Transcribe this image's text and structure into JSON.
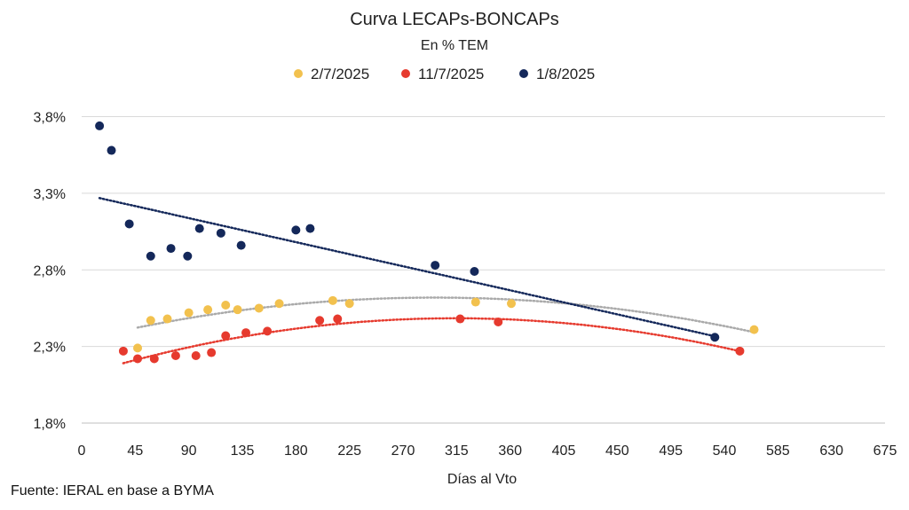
{
  "chart_data": {
    "type": "scatter",
    "title": "Curva LECAPs-BONCAPs",
    "subtitle": "En % TEM",
    "xlabel": "Días al Vto",
    "ylabel": "",
    "xlim": [
      0,
      675
    ],
    "ylim": [
      1.8,
      4.0
    ],
    "x_ticks": [
      0,
      45,
      90,
      135,
      180,
      225,
      270,
      315,
      360,
      405,
      450,
      495,
      540,
      585,
      630,
      675
    ],
    "y_ticks": [
      1.8,
      2.3,
      2.8,
      3.3,
      3.8
    ],
    "y_tick_labels": [
      "1,8%",
      "2,3%",
      "2,8%",
      "3,3%",
      "3,8%"
    ],
    "grid": "horizontal",
    "legend_position": "top",
    "series": [
      {
        "name": "2/7/2025",
        "color": "#f2c14e",
        "trend_color": "#aaaaaa",
        "x": [
          47,
          58,
          72,
          90,
          106,
          121,
          131,
          149,
          166,
          211,
          225,
          331,
          361,
          565
        ],
        "y": [
          2.29,
          2.47,
          2.48,
          2.52,
          2.54,
          2.57,
          2.54,
          2.55,
          2.58,
          2.6,
          2.58,
          2.59,
          2.58,
          2.41
        ]
      },
      {
        "name": "11/7/2025",
        "color": "#e63a2e",
        "trend_color": "#e63a2e",
        "x": [
          35,
          47,
          61,
          79,
          96,
          109,
          121,
          138,
          156,
          200,
          215,
          318,
          350,
          553
        ],
        "y": [
          2.27,
          2.22,
          2.22,
          2.24,
          2.24,
          2.26,
          2.37,
          2.39,
          2.4,
          2.47,
          2.48,
          2.48,
          2.46,
          2.27
        ]
      },
      {
        "name": "1/8/2025",
        "color": "#14285a",
        "trend_color": "#14285a",
        "x": [
          15,
          25,
          40,
          58,
          75,
          89,
          99,
          117,
          134,
          180,
          192,
          297,
          330,
          532
        ],
        "y": [
          3.74,
          3.58,
          3.1,
          2.89,
          2.94,
          2.89,
          3.07,
          3.04,
          2.96,
          3.06,
          3.07,
          2.83,
          2.79,
          2.36
        ]
      }
    ]
  },
  "source": "Fuente: IERAL en base a BYMA"
}
